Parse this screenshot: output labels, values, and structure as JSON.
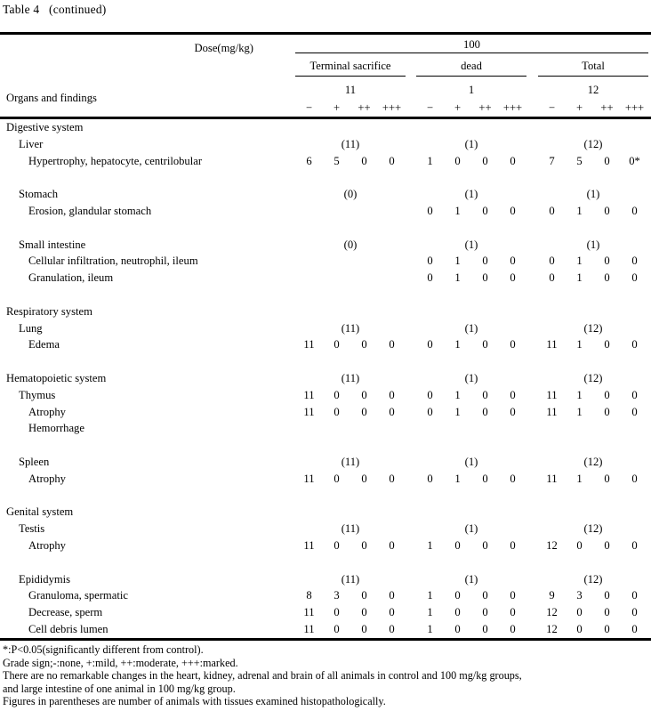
{
  "title": "Table 4   (continued)",
  "header": {
    "dose_label": "Dose(mg/kg)",
    "dose_value": "100",
    "row_header": "Organs and findings",
    "groups": [
      {
        "label": "Terminal sacrifice",
        "count": "11"
      },
      {
        "label": "dead",
        "count": "1"
      },
      {
        "label": "Total",
        "count": "12"
      }
    ],
    "grade_signs": [
      "−",
      "+",
      "++",
      "+++"
    ]
  },
  "body": {
    "rows": [
      {
        "type": "section",
        "label": "Digestive system"
      },
      {
        "type": "organ",
        "label": "Liver",
        "counts": [
          "(11)",
          "(1)",
          "(12)"
        ]
      },
      {
        "type": "finding",
        "label": "Hypertrophy, hepatocyte, centrilobular",
        "values": [
          "6",
          "5",
          "0",
          "0",
          "1",
          "0",
          "0",
          "0",
          "7",
          "5",
          "0",
          "0*"
        ]
      },
      {
        "type": "blank"
      },
      {
        "type": "organ",
        "label": "Stomach",
        "counts": [
          "(0)",
          "(1)",
          "(1)"
        ]
      },
      {
        "type": "finding",
        "label": "Erosion, glandular stomach",
        "values": [
          "",
          "",
          "",
          "",
          "0",
          "1",
          "0",
          "0",
          "0",
          "1",
          "0",
          "0"
        ]
      },
      {
        "type": "blank"
      },
      {
        "type": "organ",
        "label": "Small intestine",
        "counts": [
          "(0)",
          "(1)",
          "(1)"
        ]
      },
      {
        "type": "finding",
        "label": "Cellular infiltration, neutrophil, ileum",
        "values": [
          "",
          "",
          "",
          "",
          "0",
          "1",
          "0",
          "0",
          "0",
          "1",
          "0",
          "0"
        ]
      },
      {
        "type": "finding",
        "label": "Granulation, ileum",
        "values": [
          "",
          "",
          "",
          "",
          "0",
          "1",
          "0",
          "0",
          "0",
          "1",
          "0",
          "0"
        ]
      },
      {
        "type": "blank"
      },
      {
        "type": "section",
        "label": "Respiratory system"
      },
      {
        "type": "organ",
        "label": "Lung",
        "counts": [
          "(11)",
          "(1)",
          "(12)"
        ]
      },
      {
        "type": "finding",
        "label": "Edema",
        "values": [
          "11",
          "0",
          "0",
          "0",
          "0",
          "1",
          "0",
          "0",
          "11",
          "1",
          "0",
          "0"
        ]
      },
      {
        "type": "blank"
      },
      {
        "type": "section",
        "label": "Hematopoietic system",
        "counts": [
          "(11)",
          "(1)",
          "(12)"
        ]
      },
      {
        "type": "organ",
        "label": "Thymus",
        "values": [
          "11",
          "0",
          "0",
          "0",
          "0",
          "1",
          "0",
          "0",
          "11",
          "1",
          "0",
          "0"
        ]
      },
      {
        "type": "finding",
        "label": "Atrophy",
        "values": [
          "11",
          "0",
          "0",
          "0",
          "0",
          "1",
          "0",
          "0",
          "11",
          "1",
          "0",
          "0"
        ]
      },
      {
        "type": "finding",
        "label": "Hemorrhage"
      },
      {
        "type": "blank"
      },
      {
        "type": "organ",
        "label": "Spleen",
        "counts": [
          "(11)",
          "(1)",
          "(12)"
        ]
      },
      {
        "type": "finding",
        "label": "Atrophy",
        "values": [
          "11",
          "0",
          "0",
          "0",
          "0",
          "1",
          "0",
          "0",
          "11",
          "1",
          "0",
          "0"
        ]
      },
      {
        "type": "blank"
      },
      {
        "type": "section",
        "label": "Genital system"
      },
      {
        "type": "organ",
        "label": "Testis",
        "counts": [
          "(11)",
          "(1)",
          "(12)"
        ]
      },
      {
        "type": "finding",
        "label": "Atrophy",
        "values": [
          "11",
          "0",
          "0",
          "0",
          "1",
          "0",
          "0",
          "0",
          "12",
          "0",
          "0",
          "0"
        ]
      },
      {
        "type": "blank"
      },
      {
        "type": "organ",
        "label": "Epididymis",
        "counts": [
          "(11)",
          "(1)",
          "(12)"
        ]
      },
      {
        "type": "finding",
        "label": "Granuloma, spermatic",
        "values": [
          "8",
          "3",
          "0",
          "0",
          "1",
          "0",
          "0",
          "0",
          "9",
          "3",
          "0",
          "0"
        ]
      },
      {
        "type": "finding",
        "label": "Decrease, sperm",
        "values": [
          "11",
          "0",
          "0",
          "0",
          "1",
          "0",
          "0",
          "0",
          "12",
          "0",
          "0",
          "0"
        ]
      },
      {
        "type": "finding",
        "label": "Cell debris lumen",
        "values": [
          "11",
          "0",
          "0",
          "0",
          "1",
          "0",
          "0",
          "0",
          "12",
          "0",
          "0",
          "0"
        ]
      }
    ]
  },
  "footnotes": [
    "*:P<0.05(significantly different from control).",
    "Grade sign;-:none, +:mild, ++:moderate, +++:marked.",
    "There are no remarkable changes in the heart, kidney, adrenal and brain of all animals in control and 100 mg/kg groups,",
    "and large intestine of one animal in 100 mg/kg group.",
    "Figures in parentheses are number of animals with tissues examined histopathologically."
  ]
}
